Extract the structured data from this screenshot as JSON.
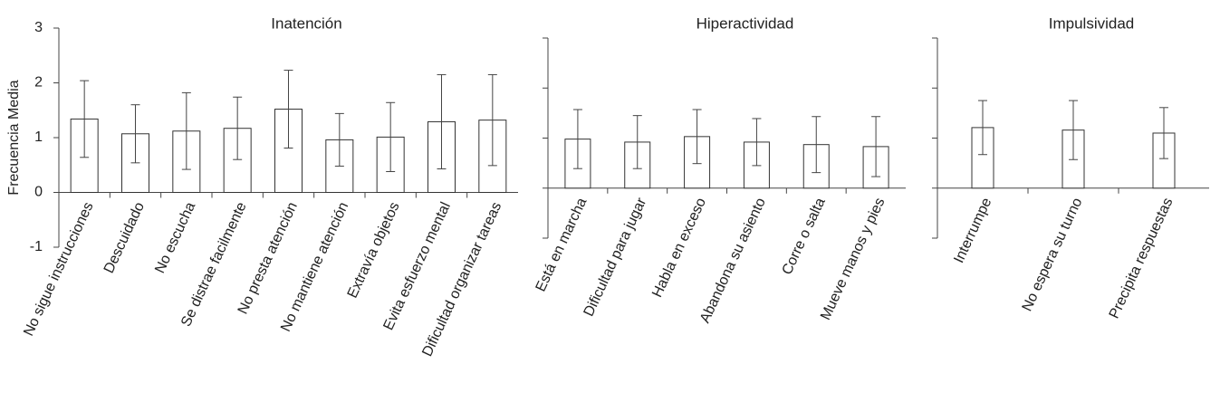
{
  "chart_data": [
    {
      "type": "bar",
      "title": "Inatención",
      "y_label": "Frecuencia Media",
      "categories": [
        "No sigue instrucciones",
        "Descuidado",
        "No escucha",
        "Se distrae facilmente",
        "No presta atención",
        "No mantiene atención",
        "Extravía objetos",
        "Evita esfuerzo mental",
        "Dificultad organizar tareas"
      ],
      "values": [
        1.34,
        1.07,
        1.12,
        1.17,
        1.52,
        0.96,
        1.01,
        1.29,
        1.32
      ],
      "errors": [
        0.7,
        0.53,
        0.7,
        0.57,
        0.71,
        0.48,
        0.63,
        0.86,
        0.83
      ],
      "color": "#ffffff",
      "ylim": [
        -1,
        3
      ],
      "yticks": [
        -1,
        0,
        1,
        2,
        3
      ],
      "show_tick_labels": true
    },
    {
      "type": "bar",
      "title": "Hiperactividad",
      "categories": [
        "Está en marcha",
        "Dificultad para jugar",
        "Habla en exceso",
        "Abandona su asiento",
        "Corre o salta",
        "Mueve manos y pies"
      ],
      "values": [
        0.98,
        0.92,
        1.03,
        0.92,
        0.87,
        0.83
      ],
      "errors": [
        0.59,
        0.53,
        0.54,
        0.47,
        0.56,
        0.6
      ],
      "color": "#ffffff",
      "ylim": [
        -1,
        3
      ],
      "yticks": [
        -1,
        0,
        1,
        2,
        3
      ],
      "show_tick_labels": false
    },
    {
      "type": "bar",
      "title": "Impulsividad",
      "categories": [
        "Interrumpe",
        "No espera su turno",
        "Precipita respuestas"
      ],
      "values": [
        1.21,
        1.16,
        1.1
      ],
      "errors": [
        0.54,
        0.59,
        0.51
      ],
      "color": "#ffffff",
      "ylim": [
        -1,
        3
      ],
      "yticks": [
        -1,
        0,
        1,
        2,
        3
      ],
      "show_tick_labels": false
    }
  ]
}
